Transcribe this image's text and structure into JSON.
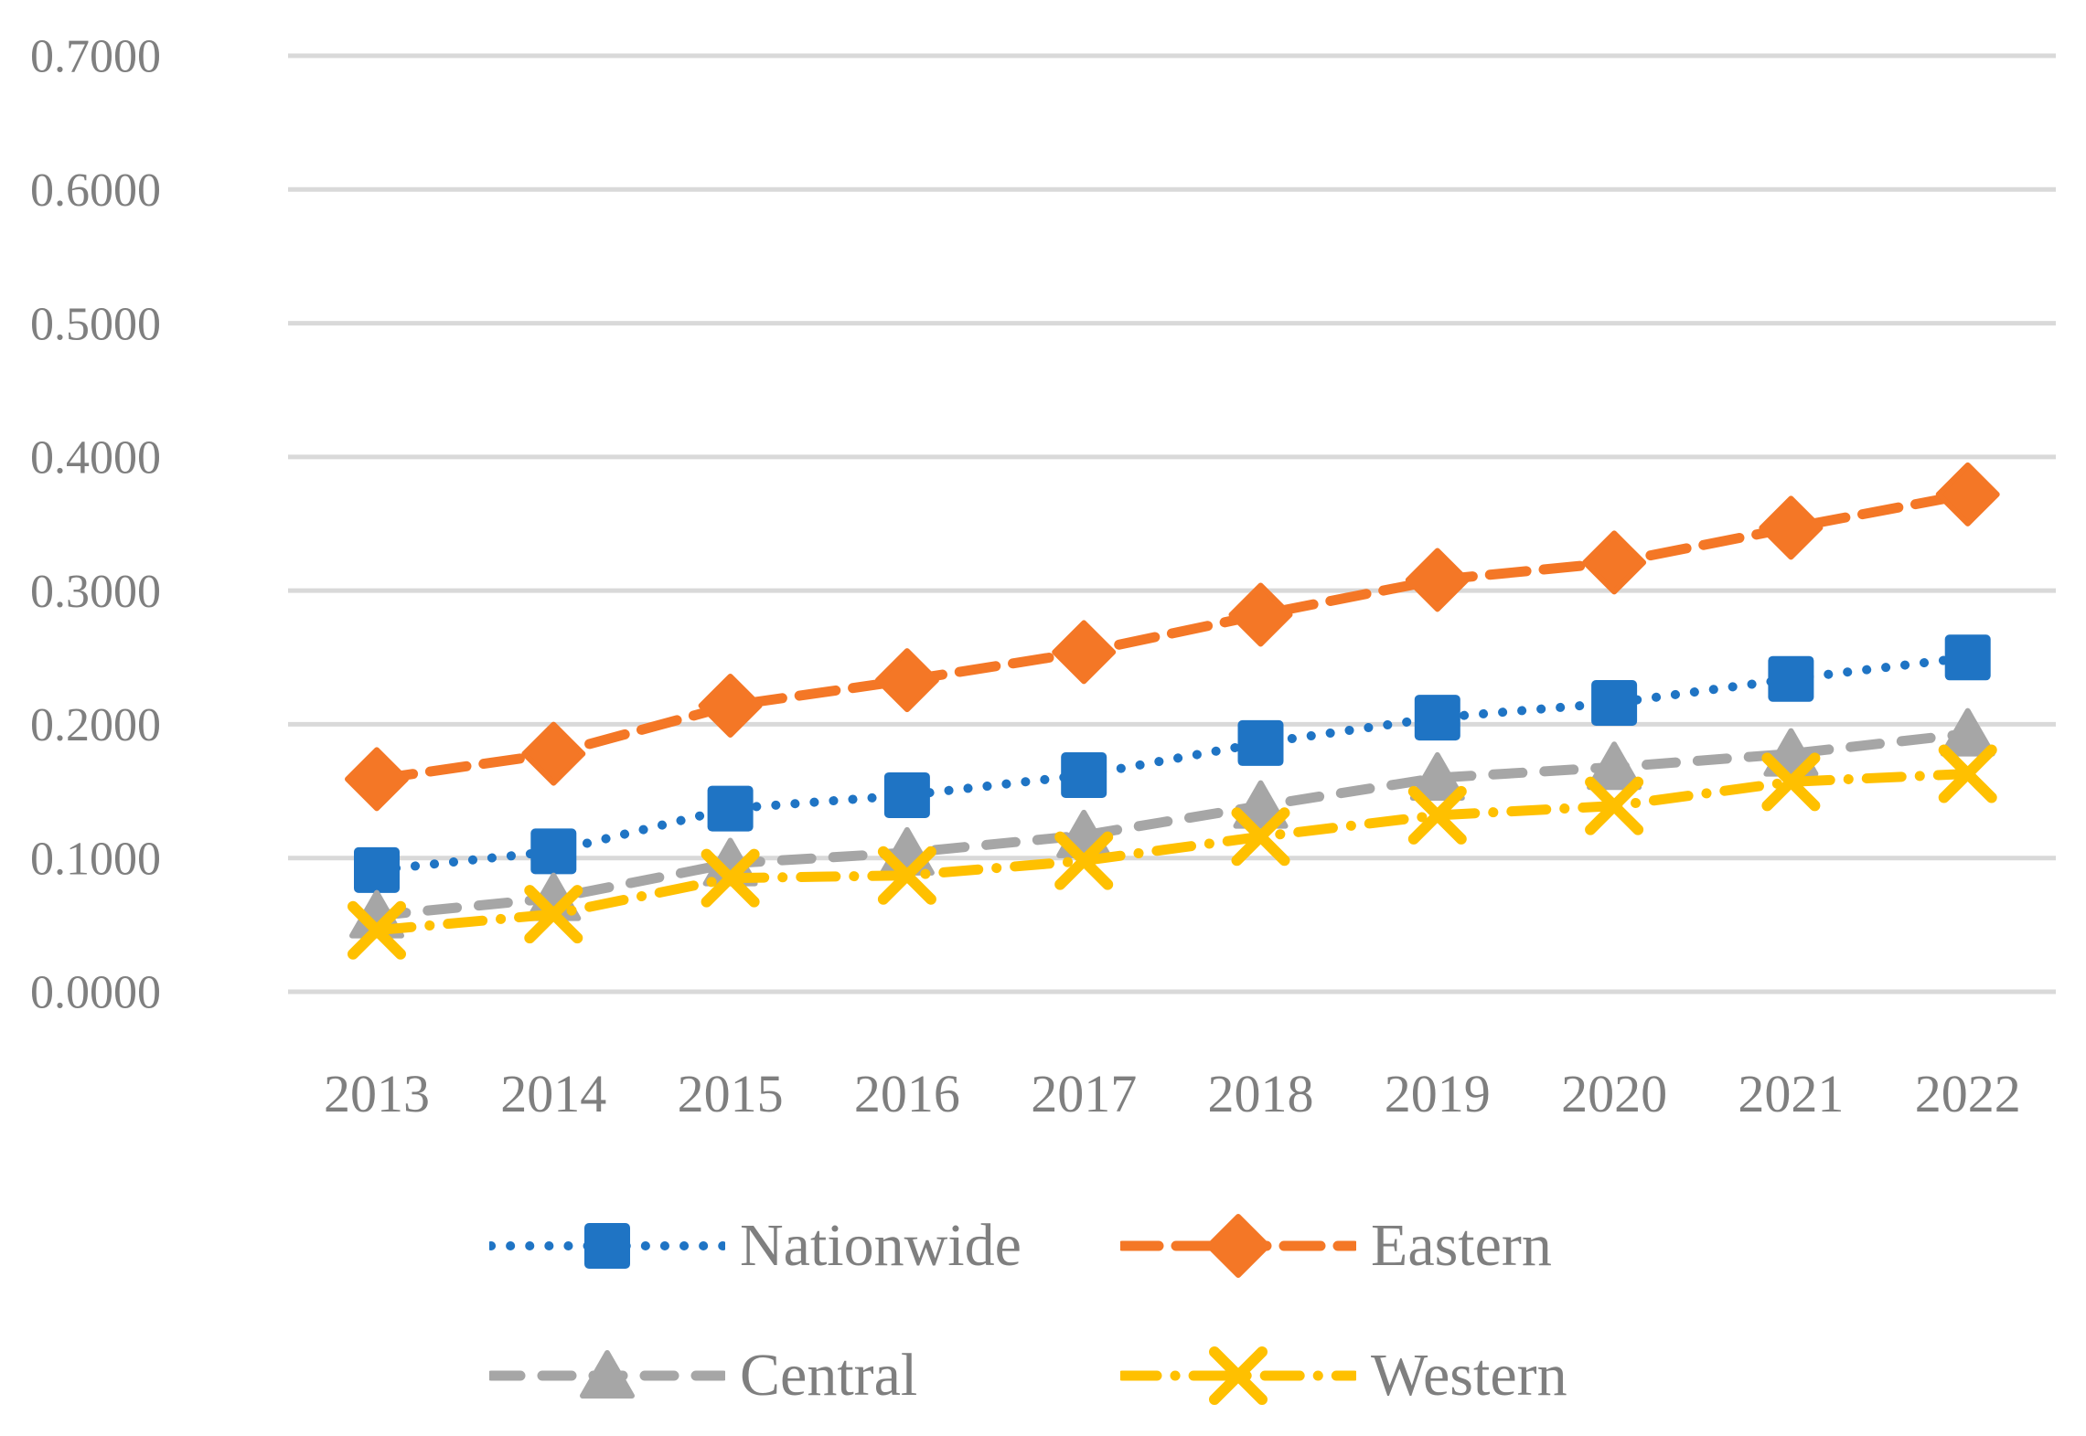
{
  "figure": {
    "background_color": "#ffffff",
    "axis_text_color": "#7f7f7f",
    "gridline_color": "#d9d9d9"
  },
  "chart_data": {
    "type": "line",
    "title": "",
    "xlabel": "",
    "ylabel": "",
    "categories": [
      "2013",
      "2014",
      "2015",
      "2016",
      "2017",
      "2018",
      "2019",
      "2020",
      "2021",
      "2022"
    ],
    "y_axis": {
      "min": 0.0,
      "max": 0.7,
      "step": 0.1,
      "tick_labels_top_to_bottom": [
        "0.7000",
        "0.6000",
        "0.5000",
        "0.4000",
        "0.3000",
        "0.2000",
        "0.1000",
        "0.0000"
      ]
    },
    "grid": true,
    "legend_position": "bottom",
    "series": [
      {
        "name": "Nationwide",
        "color": "#1f74c4",
        "marker": "square",
        "line_style": "dotted",
        "values": [
          0.091,
          0.105,
          0.137,
          0.147,
          0.162,
          0.186,
          0.205,
          0.216,
          0.234,
          0.25
        ]
      },
      {
        "name": "Eastern",
        "color": "#f47726",
        "marker": "diamond",
        "line_style": "dashed",
        "values": [
          0.159,
          0.178,
          0.214,
          0.233,
          0.254,
          0.282,
          0.308,
          0.321,
          0.347,
          0.372
        ]
      },
      {
        "name": "Central",
        "color": "#a6a6a6",
        "marker": "triangle",
        "line_style": "dashed",
        "values": [
          0.057,
          0.07,
          0.096,
          0.104,
          0.117,
          0.139,
          0.16,
          0.168,
          0.178,
          0.193
        ]
      },
      {
        "name": "Western",
        "color": "#ffc000",
        "marker": "x",
        "line_style": "dash-dot",
        "values": [
          0.046,
          0.058,
          0.085,
          0.087,
          0.098,
          0.116,
          0.132,
          0.139,
          0.157,
          0.163
        ]
      }
    ]
  }
}
